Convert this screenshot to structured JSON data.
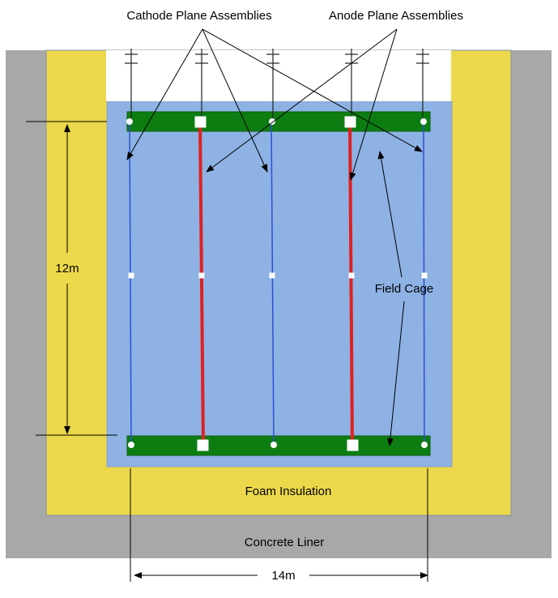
{
  "labels": {
    "cathode": "Cathode Plane Assemblies",
    "anode": "Anode Plane Assemblies",
    "field_cage": "Field Cage",
    "foam": "Foam Insulation",
    "concrete": "Concrete Liner",
    "height": "12m",
    "width": "14m"
  },
  "colors": {
    "concrete": "#a8a8a8",
    "foam": "#ecd84a",
    "argon": "#8db2e3",
    "field_cage_bar": "#0d7d12",
    "cathode_line": "#2d4fd6",
    "anode_line": "#e02020",
    "top_cover": "#ffffff"
  }
}
